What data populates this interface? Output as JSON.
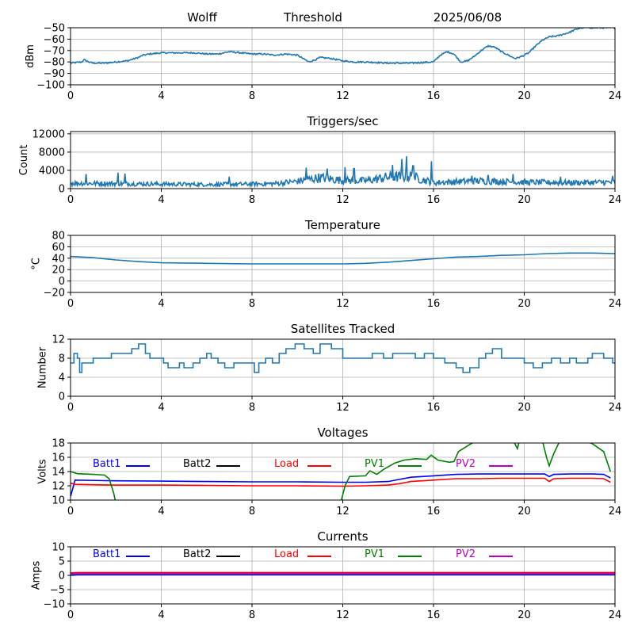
{
  "header": {
    "station": "Wolff",
    "mode": "Threshold",
    "date": "2025/06/08"
  },
  "colors": {
    "line": "#1f77b4",
    "grid": "#b0b0b0",
    "batt1": "#0000ff",
    "batt2": "#000000",
    "load": "#ff0000",
    "pv1": "#008000",
    "pv2": "#c000c0"
  },
  "chart_data": [
    {
      "id": "signal",
      "type": "line",
      "title": "",
      "ylabel": "dBm",
      "xlim": [
        0,
        24
      ],
      "ylim": [
        -100,
        -50
      ],
      "xticks": [
        0,
        4,
        8,
        12,
        16,
        20,
        24
      ],
      "yticks": [
        -100,
        -90,
        -80,
        -70,
        -60,
        -50
      ],
      "grid": true,
      "noise": 0.6,
      "series": [
        {
          "color": "#1f77b4",
          "x": [
            0,
            0.5,
            0.6,
            0.8,
            1.0,
            1.5,
            2.0,
            2.5,
            3.0,
            3.2,
            3.5,
            4.0,
            4.5,
            5.0,
            5.5,
            6.0,
            6.5,
            7.0,
            7.5,
            8.0,
            8.5,
            9.0,
            9.5,
            10.0,
            10.5,
            10.8,
            11.0,
            11.5,
            12.0,
            12.5,
            13.0,
            14.0,
            15.0,
            16.0,
            16.3,
            16.6,
            16.9,
            17.2,
            17.5,
            17.8,
            18.1,
            18.4,
            18.7,
            19.0,
            19.3,
            19.6,
            19.9,
            20.2,
            20.5,
            20.8,
            21.1,
            21.5,
            22.0,
            22.2,
            22.5,
            23.0,
            23.5,
            24.0
          ],
          "y": [
            -81,
            -80,
            -78,
            -80,
            -81,
            -81,
            -80,
            -79,
            -76,
            -74,
            -73,
            -72,
            -72,
            -72,
            -72,
            -73,
            -73,
            -71,
            -72,
            -73,
            -73,
            -74,
            -73,
            -74,
            -80,
            -78,
            -76,
            -77,
            -79,
            -80,
            -80,
            -81,
            -81,
            -80,
            -74,
            -71,
            -73,
            -80,
            -79,
            -75,
            -70,
            -66,
            -67,
            -71,
            -74,
            -77,
            -75,
            -72,
            -66,
            -61,
            -58,
            -57,
            -54,
            -52,
            -50,
            -50,
            -50,
            -50
          ]
        }
      ]
    },
    {
      "id": "triggers",
      "type": "line",
      "title": "Triggers/sec",
      "ylabel": "Count",
      "xlim": [
        0,
        24
      ],
      "ylim": [
        0,
        12500
      ],
      "xticks": [
        0,
        4,
        8,
        12,
        16,
        20,
        24
      ],
      "yticks": [
        0,
        4000,
        8000,
        12000
      ],
      "grid": true,
      "noise": 700,
      "spikes": [
        [
          0.7,
          3200
        ],
        [
          2.1,
          3500
        ],
        [
          2.4,
          3300
        ],
        [
          7.0,
          2600
        ],
        [
          10.4,
          4600
        ],
        [
          11.3,
          4400
        ],
        [
          12.1,
          4700
        ],
        [
          12.5,
          4400
        ],
        [
          14.2,
          5200
        ],
        [
          14.6,
          6500
        ],
        [
          14.8,
          7100
        ],
        [
          15.1,
          5000
        ],
        [
          15.9,
          6000
        ],
        [
          17.7,
          2800
        ],
        [
          18.4,
          3000
        ],
        [
          19.5,
          3200
        ],
        [
          21.6,
          2600
        ],
        [
          23.9,
          2800
        ]
      ],
      "series": [
        {
          "color": "#1f77b4",
          "x": [
            0,
            2,
            4,
            6,
            8,
            9,
            10,
            11,
            12,
            13,
            14,
            15,
            16,
            17,
            18,
            20,
            22,
            24
          ],
          "y": [
            1200,
            1100,
            1000,
            900,
            1000,
            1100,
            1600,
            2400,
            1800,
            1700,
            2500,
            2700,
            1300,
            1500,
            1700,
            1400,
            1300,
            1400
          ]
        }
      ]
    },
    {
      "id": "temperature",
      "type": "line",
      "title": "Temperature",
      "ylabel": "°C",
      "xlim": [
        0,
        24
      ],
      "ylim": [
        -20,
        80
      ],
      "xticks": [
        0,
        4,
        8,
        12,
        16,
        20,
        24
      ],
      "yticks": [
        -20,
        0,
        20,
        40,
        60,
        80
      ],
      "grid": true,
      "noise": 0,
      "series": [
        {
          "color": "#1f77b4",
          "x": [
            0,
            1,
            2,
            3,
            4,
            6,
            8,
            10,
            12,
            13,
            14,
            15,
            16,
            17,
            18,
            19,
            20,
            21,
            22,
            23,
            24
          ],
          "y": [
            43,
            41,
            37,
            34,
            32,
            31,
            30,
            30,
            30,
            31,
            33,
            36,
            39,
            42,
            43,
            45,
            46,
            48,
            49,
            49,
            48
          ]
        }
      ]
    },
    {
      "id": "satellites",
      "type": "line",
      "title": "Satellites Tracked",
      "ylabel": "Number",
      "xlim": [
        0,
        24
      ],
      "ylim": [
        0,
        12
      ],
      "xticks": [
        0,
        4,
        8,
        12,
        16,
        20,
        24
      ],
      "yticks": [
        0,
        4,
        8,
        12
      ],
      "grid": true,
      "noise": 0,
      "step": true,
      "series": [
        {
          "color": "#1f77b4",
          "x": [
            0,
            0.15,
            0.3,
            0.4,
            0.5,
            1.0,
            1.7,
            1.8,
            2.3,
            2.7,
            3.0,
            3.3,
            3.5,
            3.9,
            4.1,
            4.3,
            4.8,
            5.0,
            5.4,
            5.7,
            6.0,
            6.2,
            6.5,
            6.8,
            7.2,
            7.8,
            8.1,
            8.3,
            8.6,
            8.9,
            9.2,
            9.5,
            9.9,
            10.3,
            10.7,
            11.0,
            11.5,
            12.0,
            12.8,
            13.3,
            13.8,
            14.2,
            14.8,
            15.2,
            15.6,
            16.0,
            16.5,
            17.0,
            17.3,
            17.6,
            18.0,
            18.3,
            18.6,
            19.0,
            19.5,
            20.0,
            20.4,
            20.8,
            21.2,
            21.6,
            22.0,
            22.3,
            22.8,
            23.0,
            23.5,
            23.9
          ],
          "y": [
            7,
            9,
            8,
            5,
            7,
            8,
            8,
            9,
            9,
            10,
            11,
            9,
            8,
            8,
            7,
            6,
            7,
            6,
            7,
            8,
            9,
            8,
            7,
            6,
            7,
            7,
            5,
            7,
            8,
            7,
            9,
            10,
            11,
            10,
            9,
            11,
            10,
            8,
            8,
            9,
            8,
            9,
            9,
            8,
            9,
            8,
            7,
            6,
            5,
            6,
            8,
            9,
            10,
            8,
            8,
            7,
            6,
            7,
            8,
            7,
            8,
            7,
            8,
            9,
            8,
            7
          ]
        }
      ]
    },
    {
      "id": "voltages",
      "type": "line",
      "title": "Voltages",
      "ylabel": "Volts",
      "xlim": [
        0,
        24
      ],
      "ylim": [
        10,
        18
      ],
      "xticks": [
        0,
        4,
        8,
        12,
        16,
        20,
        24
      ],
      "yticks": [
        10,
        12,
        14,
        16,
        18
      ],
      "grid": true,
      "noise": 0,
      "legend": [
        "Batt1",
        "Batt2",
        "Load",
        "PV1",
        "PV2"
      ],
      "series": [
        {
          "name": "Batt1",
          "color": "#0000ff",
          "x": [
            0,
            0.2,
            2,
            4,
            6,
            8,
            10,
            12,
            13,
            14,
            14.5,
            15,
            16,
            17,
            18,
            19,
            20,
            20.9,
            21.1,
            21.3,
            22,
            23,
            23.5,
            23.8
          ],
          "y": [
            10.5,
            12.8,
            12.7,
            12.65,
            12.6,
            12.55,
            12.55,
            12.5,
            12.5,
            12.6,
            12.9,
            13.2,
            13.4,
            13.6,
            13.65,
            13.65,
            13.65,
            13.65,
            13.3,
            13.6,
            13.65,
            13.65,
            13.6,
            13.1
          ]
        },
        {
          "name": "Load",
          "color": "#ff0000",
          "x": [
            0,
            0.2,
            2,
            4,
            6,
            8,
            10,
            12,
            13,
            14,
            14.5,
            15,
            16,
            17,
            18,
            19,
            20,
            20.9,
            21.1,
            21.3,
            22,
            23,
            23.5,
            23.8
          ],
          "y": [
            12.4,
            12.2,
            12.1,
            12.1,
            12.05,
            12.0,
            12.0,
            11.95,
            12.0,
            12.1,
            12.3,
            12.6,
            12.8,
            13.0,
            13.0,
            13.05,
            13.05,
            13.05,
            12.6,
            13.0,
            13.05,
            13.05,
            13.0,
            12.5
          ]
        },
        {
          "name": "PV1",
          "color": "#008000",
          "x": [
            0,
            0.3,
            1.0,
            1.5,
            1.7,
            1.9,
            2.0,
            11.9,
            12.1,
            12.3,
            13.0,
            13.2,
            13.5,
            13.8,
            14.3,
            14.7,
            15.2,
            15.7,
            15.9,
            16.2,
            16.7,
            16.9,
            17.1,
            17.6,
            18.0,
            19.5,
            19.6,
            19.7,
            19.8,
            20.0,
            20.2,
            20.6,
            20.8,
            21.0,
            21.1,
            21.3,
            21.6,
            22.5,
            23.0,
            23.5,
            23.8
          ],
          "y": [
            14.0,
            13.7,
            13.6,
            13.5,
            13.0,
            11.0,
            9.5,
            9.5,
            12.0,
            13.3,
            13.4,
            14.1,
            13.6,
            14.3,
            15.2,
            15.6,
            15.8,
            15.7,
            16.3,
            15.6,
            15.3,
            15.4,
            16.8,
            17.8,
            18.5,
            18.5,
            17.8,
            17.2,
            18.5,
            18.5,
            18.5,
            18.5,
            18.3,
            15.8,
            14.8,
            16.5,
            18.5,
            18.5,
            17.9,
            16.8,
            14.0
          ]
        }
      ]
    },
    {
      "id": "currents",
      "type": "line",
      "title": "Currents",
      "ylabel": "Amps",
      "xlim": [
        0,
        24
      ],
      "ylim": [
        -10,
        10
      ],
      "xticks": [
        0,
        4,
        8,
        12,
        16,
        20,
        24
      ],
      "yticks": [
        -10,
        -5,
        0,
        5,
        10
      ],
      "grid": true,
      "noise": 0,
      "legend": [
        "Batt1",
        "Batt2",
        "Load",
        "PV1",
        "PV2"
      ],
      "series": [
        {
          "name": "Batt1",
          "color": "#0000ff",
          "x": [
            0,
            0.3,
            24
          ],
          "y": [
            0.0,
            0.2,
            0.2
          ]
        },
        {
          "name": "Load",
          "color": "#ff0000",
          "x": [
            0,
            0.3,
            24
          ],
          "y": [
            0.9,
            1.0,
            1.0
          ]
        },
        {
          "name": "PV1",
          "color": "#008000",
          "x": [
            0,
            24
          ],
          "y": [
            0.5,
            0.5
          ]
        },
        {
          "name": "PV2",
          "color": "#c000c0",
          "x": [
            0,
            24
          ],
          "y": [
            0.6,
            0.6
          ]
        }
      ]
    }
  ]
}
